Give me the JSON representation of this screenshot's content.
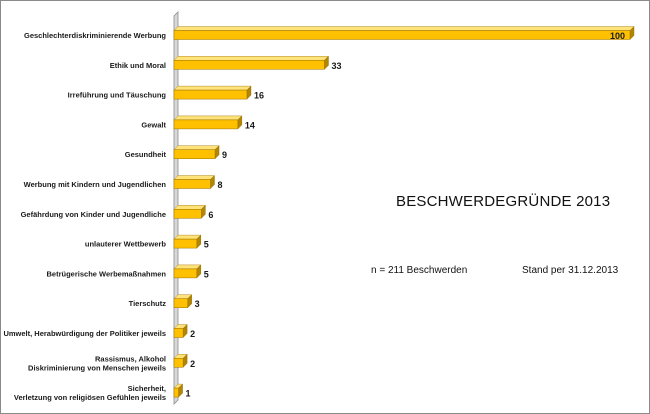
{
  "chart_data": {
    "type": "bar",
    "orientation": "horizontal",
    "title": "BESCHWERDEGRÜNDE 2013",
    "categories": [
      "Geschlechterdiskriminierende Werbung",
      "Ethik und Moral",
      "Irreführung und Täuschung",
      "Gewalt",
      "Gesundheit",
      "Werbung mit Kindern und Jugendlichen",
      "Gefährdung von Kinder und Jugendliche",
      "unlauterer Wettbewerb",
      "Betrügerische Werbemaßnahmen",
      "Tierschutz",
      "Umwelt, Herabwürdigung der Politiker jeweils",
      "Rassismus, Alkohol\nDiskriminierung von Menschen jeweils",
      "Sicherheit,\nVerletzung von religiösen Gefühlen jeweils"
    ],
    "values": [
      100,
      33,
      16,
      14,
      9,
      8,
      6,
      5,
      5,
      3,
      2,
      2,
      1
    ],
    "xlim": [
      0,
      100
    ],
    "grid": false,
    "legend": "none",
    "annotations": [
      "n = 211 Beschwerden",
      "Stand per 31.12.2013"
    ],
    "colors": {
      "bar_face": "#FFC000",
      "bar_top": "#FFE27A",
      "bar_side": "#B38600",
      "axis_wall": "#d8d8d8"
    }
  }
}
